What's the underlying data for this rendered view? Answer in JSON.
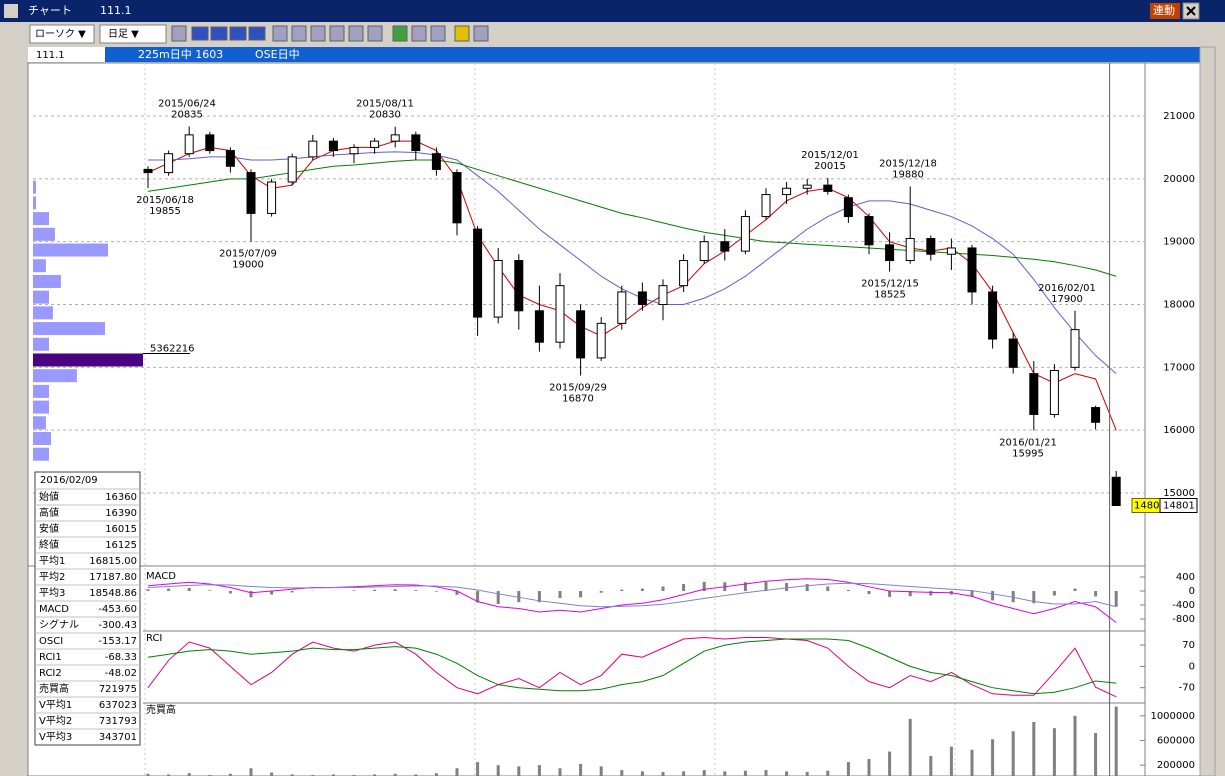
{
  "window": {
    "title": "チャート",
    "symbol": "111.1",
    "link_button": "連動"
  },
  "toolbar": {
    "chart_style": "ローソク ▼",
    "period": "日足 ▼"
  },
  "info_bar": {
    "symbol": "111.1",
    "contract": "225m日中 1603",
    "session": "OSE日中"
  },
  "chart_data": [
    {
      "type": "candlestick",
      "ylim": [
        13854,
        21812
      ],
      "yticks": [
        15000,
        16000,
        17000,
        18000,
        19000,
        20000,
        21000
      ],
      "grid": true,
      "open": [
        20150,
        20100,
        20400,
        20700,
        20450,
        20100,
        19450,
        19950,
        20350,
        20600,
        20400,
        20500,
        20600,
        20700,
        20400,
        20100,
        19200,
        17800,
        18700,
        17900,
        17400,
        17900,
        17150,
        17700,
        18200,
        18000,
        18300,
        18700,
        19000,
        18850,
        19400,
        19750,
        19850,
        19900,
        19700,
        19400,
        18950,
        18700,
        19050,
        18800,
        18900,
        18200,
        17450,
        16900,
        16250,
        17000,
        16360,
        15250
      ],
      "high": [
        20200,
        20450,
        20835,
        20750,
        20500,
        20150,
        20000,
        20400,
        20700,
        20650,
        20550,
        20650,
        20830,
        20750,
        20500,
        20150,
        19250,
        18900,
        18800,
        18300,
        18500,
        18000,
        17800,
        18300,
        18350,
        18400,
        18800,
        19100,
        19200,
        19500,
        19850,
        19950,
        20000,
        20015,
        19750,
        19450,
        19150,
        19880,
        19100,
        19050,
        18950,
        18300,
        17550,
        17100,
        17050,
        17900,
        16390,
        15350
      ],
      "low": [
        19855,
        20050,
        20350,
        20400,
        20100,
        19000,
        19400,
        19900,
        20300,
        20350,
        20250,
        20400,
        20500,
        20300,
        20050,
        19100,
        17500,
        17700,
        17600,
        17250,
        17300,
        16870,
        17100,
        17600,
        17900,
        17750,
        18200,
        18650,
        18700,
        18800,
        19350,
        19600,
        19750,
        19750,
        19300,
        18800,
        18525,
        18650,
        18700,
        18550,
        18000,
        17300,
        16900,
        15995,
        16200,
        16950,
        16015,
        14800
      ],
      "close": [
        20100,
        20400,
        20700,
        20450,
        20200,
        19450,
        19950,
        20350,
        20600,
        20450,
        20500,
        20600,
        20700,
        20450,
        20150,
        19300,
        17800,
        18700,
        17900,
        17400,
        18300,
        17150,
        17700,
        18200,
        18000,
        18300,
        18700,
        19000,
        18850,
        19400,
        19750,
        19850,
        19900,
        19800,
        19400,
        18950,
        18700,
        19050,
        18800,
        18900,
        18200,
        17450,
        17000,
        16250,
        16950,
        17600,
        16125,
        14801
      ],
      "up_color": "#ffffff",
      "down_color": "#000000",
      "series": [
        {
          "name": "平均1",
          "color": "#d00000",
          "values": [
            20100,
            20250,
            20400,
            20500,
            20450,
            20050,
            19850,
            19900,
            20300,
            20450,
            20500,
            20500,
            20600,
            20600,
            20450,
            20000,
            19100,
            18600,
            18150,
            18000,
            17900,
            17650,
            17500,
            17700,
            17950,
            18150,
            18300,
            18650,
            18850,
            19100,
            19350,
            19650,
            19800,
            19850,
            19700,
            19400,
            19000,
            18900,
            18850,
            18900,
            18650,
            18200,
            17550,
            16900,
            16750,
            16900,
            16815,
            16000
          ]
        },
        {
          "name": "平均2",
          "color": "#6060d0",
          "values": [
            20300,
            20300,
            20320,
            20350,
            20350,
            20300,
            20300,
            20320,
            20350,
            20380,
            20400,
            20420,
            20430,
            20420,
            20380,
            20300,
            20050,
            19800,
            19500,
            19200,
            18950,
            18700,
            18450,
            18250,
            18100,
            18000,
            18000,
            18100,
            18250,
            18450,
            18700,
            18950,
            19200,
            19400,
            19550,
            19650,
            19650,
            19600,
            19500,
            19400,
            19250,
            19050,
            18800,
            18400,
            17950,
            17550,
            17187.8,
            16900
          ]
        },
        {
          "name": "平均3",
          "color": "#008000",
          "values": [
            19800,
            19850,
            19900,
            19950,
            20000,
            20000,
            20050,
            20100,
            20150,
            20200,
            20220,
            20250,
            20280,
            20300,
            20300,
            20250,
            20150,
            20050,
            19950,
            19850,
            19750,
            19650,
            19550,
            19450,
            19380,
            19300,
            19220,
            19150,
            19100,
            19050,
            19000,
            18980,
            18960,
            18940,
            18920,
            18900,
            18880,
            18860,
            18840,
            18820,
            18800,
            18780,
            18750,
            18720,
            18680,
            18620,
            18548.86,
            18450
          ]
        }
      ],
      "annotations": [
        {
          "date": "2015/06/18",
          "value": 19855
        },
        {
          "date": "2015/06/24",
          "value": 20835
        },
        {
          "date": "2015/07/09",
          "value": 19000
        },
        {
          "date": "2015/08/11",
          "value": 20830
        },
        {
          "date": "2015/09/29",
          "value": 16870
        },
        {
          "date": "2015/12/01",
          "value": 20015
        },
        {
          "date": "2015/12/18",
          "value": 19880
        },
        {
          "date": "2015/12/15",
          "value": 18525
        },
        {
          "date": "2016/01/21",
          "value": 15995
        },
        {
          "date": "2016/02/01",
          "value": 17900
        }
      ],
      "volume_profile": {
        "levels": [
          19875,
          19625,
          19375,
          19125,
          18875,
          18625,
          18375,
          18125,
          17875,
          17625,
          17375,
          17125,
          16875,
          16625,
          16375,
          16125,
          15875,
          15625
        ],
        "values": [
          150000,
          150000,
          780000,
          1070000,
          3660000,
          630000,
          1360000,
          780000,
          970000,
          3510000,
          780000,
          5362216,
          2140000,
          780000,
          780000,
          630000,
          880000,
          780000
        ],
        "color": "#9999ff",
        "max_color": "#4b0082"
      }
    },
    {
      "type": "macd",
      "title": "MACD",
      "ylim": [
        -1114,
        686
      ],
      "yticks": [
        400,
        0,
        -400,
        -800
      ],
      "series": [
        {
          "name": "MACD",
          "color": "#e000e0",
          "values": [
            150,
            200,
            250,
            200,
            100,
            -50,
            0,
            50,
            100,
            100,
            120,
            150,
            180,
            170,
            120,
            0,
            -300,
            -450,
            -500,
            -600,
            -550,
            -600,
            -500,
            -400,
            -350,
            -250,
            -100,
            50,
            120,
            200,
            280,
            320,
            350,
            330,
            250,
            120,
            0,
            -20,
            -40,
            -50,
            -150,
            -350,
            -500,
            -650,
            -500,
            -300,
            -453.6,
            -900
          ]
        },
        {
          "name": "シグナル",
          "color": "#8080d0",
          "values": [
            100,
            130,
            160,
            180,
            170,
            130,
            100,
            90,
            90,
            95,
            100,
            115,
            130,
            145,
            140,
            110,
            30,
            -80,
            -180,
            -280,
            -350,
            -420,
            -450,
            -440,
            -420,
            -380,
            -300,
            -210,
            -130,
            -50,
            20,
            90,
            150,
            200,
            220,
            210,
            170,
            130,
            90,
            50,
            10,
            -80,
            -180,
            -300,
            -370,
            -370,
            -300.43,
            -450
          ]
        }
      ],
      "osci": {
        "color": "#808080",
        "values": [
          50,
          70,
          90,
          20,
          -70,
          -180,
          -100,
          -40,
          10,
          5,
          20,
          35,
          50,
          25,
          -20,
          -110,
          -330,
          -370,
          -320,
          -320,
          -200,
          -180,
          -50,
          40,
          70,
          130,
          200,
          260,
          250,
          250,
          260,
          230,
          200,
          130,
          30,
          -90,
          -170,
          -150,
          -130,
          -100,
          -160,
          -270,
          -320,
          -350,
          -130,
          70,
          -153.17,
          -450
        ]
      }
    },
    {
      "type": "rci",
      "title": "RCI",
      "ylim": [
        -117,
        113
      ],
      "yticks": [
        70,
        0,
        -70
      ],
      "series": [
        {
          "name": "RCI1",
          "color": "#e00080",
          "values": [
            -70,
            20,
            80,
            60,
            0,
            -60,
            -20,
            40,
            80,
            60,
            50,
            70,
            80,
            40,
            -20,
            -70,
            -90,
            -60,
            -40,
            -70,
            -20,
            -60,
            -30,
            40,
            30,
            60,
            90,
            95,
            90,
            95,
            95,
            90,
            85,
            60,
            0,
            -50,
            -70,
            -30,
            -50,
            -20,
            -60,
            -90,
            -95,
            -95,
            -20,
            60,
            -68.33,
            -100
          ]
        },
        {
          "name": "RCI2",
          "color": "#008000",
          "values": [
            30,
            40,
            50,
            55,
            50,
            40,
            45,
            50,
            60,
            55,
            55,
            60,
            65,
            60,
            40,
            10,
            -30,
            -60,
            -70,
            -75,
            -80,
            -80,
            -75,
            -60,
            -50,
            -30,
            10,
            50,
            70,
            80,
            85,
            90,
            90,
            90,
            85,
            60,
            30,
            0,
            -20,
            -30,
            -50,
            -70,
            -80,
            -90,
            -85,
            -70,
            -48.02,
            -55
          ]
        }
      ]
    },
    {
      "type": "volume",
      "title": "売買高",
      "ylim": [
        24000,
        1192000
      ],
      "yticks": [
        1000000,
        600000,
        200000
      ],
      "color": "#808080",
      "values": [
        60000,
        50000,
        70000,
        40000,
        60000,
        150000,
        80000,
        50000,
        40000,
        50000,
        40000,
        50000,
        60000,
        50000,
        70000,
        150000,
        250000,
        200000,
        180000,
        200000,
        150000,
        220000,
        180000,
        120000,
        100000,
        90000,
        100000,
        120000,
        100000,
        110000,
        120000,
        100000,
        90000,
        110000,
        250000,
        300000,
        420000,
        950000,
        350000,
        500000,
        450000,
        620000,
        750000,
        900000,
        800000,
        1000000,
        721975,
        1150000
      ]
    }
  ],
  "info_panel": {
    "date": "2016/02/09",
    "rows": [
      {
        "label": "始値",
        "value": "16360",
        "color": "#000000"
      },
      {
        "label": "高値",
        "value": "16390",
        "color": "#000000"
      },
      {
        "label": "安値",
        "value": "16015",
        "color": "#000000"
      },
      {
        "label": "終値",
        "value": "16125",
        "color": "#000000"
      },
      {
        "label": "平均1",
        "value": "16815.00",
        "color": "#d00000"
      },
      {
        "label": "平均2",
        "value": "17187.80",
        "color": "#4040c0"
      },
      {
        "label": "平均3",
        "value": "18548.86",
        "color": "#008000"
      },
      {
        "label": "MACD",
        "value": "-453.60",
        "color": "#e000e0"
      },
      {
        "label": "シグナル",
        "value": "-300.43",
        "color": "#8080c0"
      },
      {
        "label": "OSCI",
        "value": "-153.17",
        "color": "#808080"
      },
      {
        "label": "RCI1",
        "value": "-68.33",
        "color": "#e00080"
      },
      {
        "label": "RCI2",
        "value": "-48.02",
        "color": "#008000"
      },
      {
        "label": "売買高",
        "value": "721975",
        "color": "#000000"
      },
      {
        "label": "V平均1",
        "value": "637023",
        "color": "#d00000"
      },
      {
        "label": "V平均2",
        "value": "731793",
        "color": "#4040c0"
      },
      {
        "label": "V平均3",
        "value": "343701",
        "color": "#008000"
      }
    ]
  }
}
